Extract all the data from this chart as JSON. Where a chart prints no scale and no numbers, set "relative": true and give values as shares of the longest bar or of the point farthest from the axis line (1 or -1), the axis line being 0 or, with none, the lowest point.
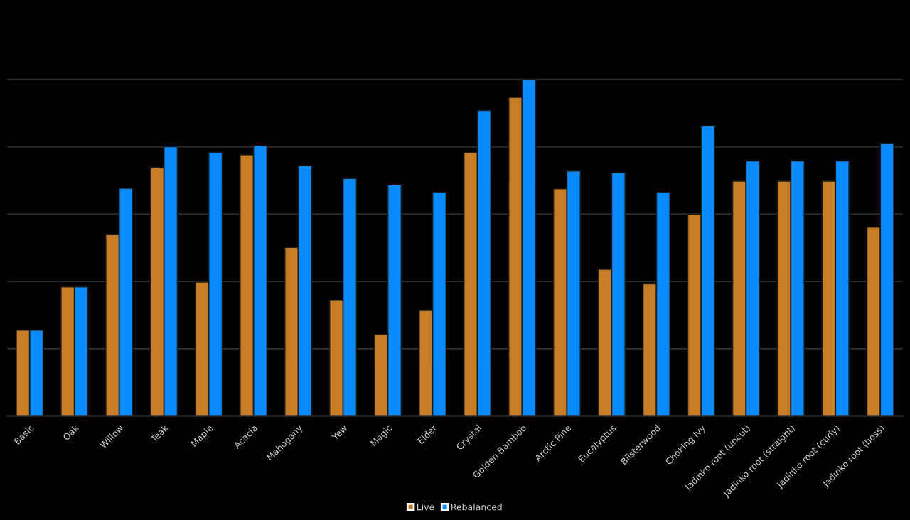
{
  "chart_data": {
    "type": "bar",
    "relative": true,
    "categories": [
      "Basic",
      "Oak",
      "Willow",
      "Teak",
      "Maple",
      "Acacia",
      "Mahogany",
      "Yew",
      "Magic",
      "Elder",
      "Crystal",
      "Golden Bamboo",
      "Arctic Pine",
      "Eucalyptus",
      "Blisterwood",
      "Choking Ivy",
      "Jadinko root (uncut)",
      "Jadinko root (straight)",
      "Jadinko root (curly)",
      "Jadinko root (boss)"
    ],
    "series": [
      {
        "name": "Live",
        "color": "#c77e26",
        "values": [
          0.255,
          0.384,
          0.539,
          0.738,
          0.398,
          0.776,
          0.501,
          0.344,
          0.242,
          0.314,
          0.783,
          0.947,
          0.675,
          0.436,
          0.393,
          0.6,
          0.698,
          0.698,
          0.698,
          0.561
        ]
      },
      {
        "name": "Rebalanced",
        "color": "#0a8cff",
        "values": [
          0.255,
          0.384,
          0.677,
          0.8,
          0.783,
          0.803,
          0.744,
          0.706,
          0.687,
          0.665,
          0.908,
          1,
          0.728,
          0.723,
          0.665,
          0.862,
          0.758,
          0.758,
          0.758,
          0.809
        ]
      }
    ],
    "grid": "y",
    "legend": "bottom",
    "tick_labels": "x"
  }
}
